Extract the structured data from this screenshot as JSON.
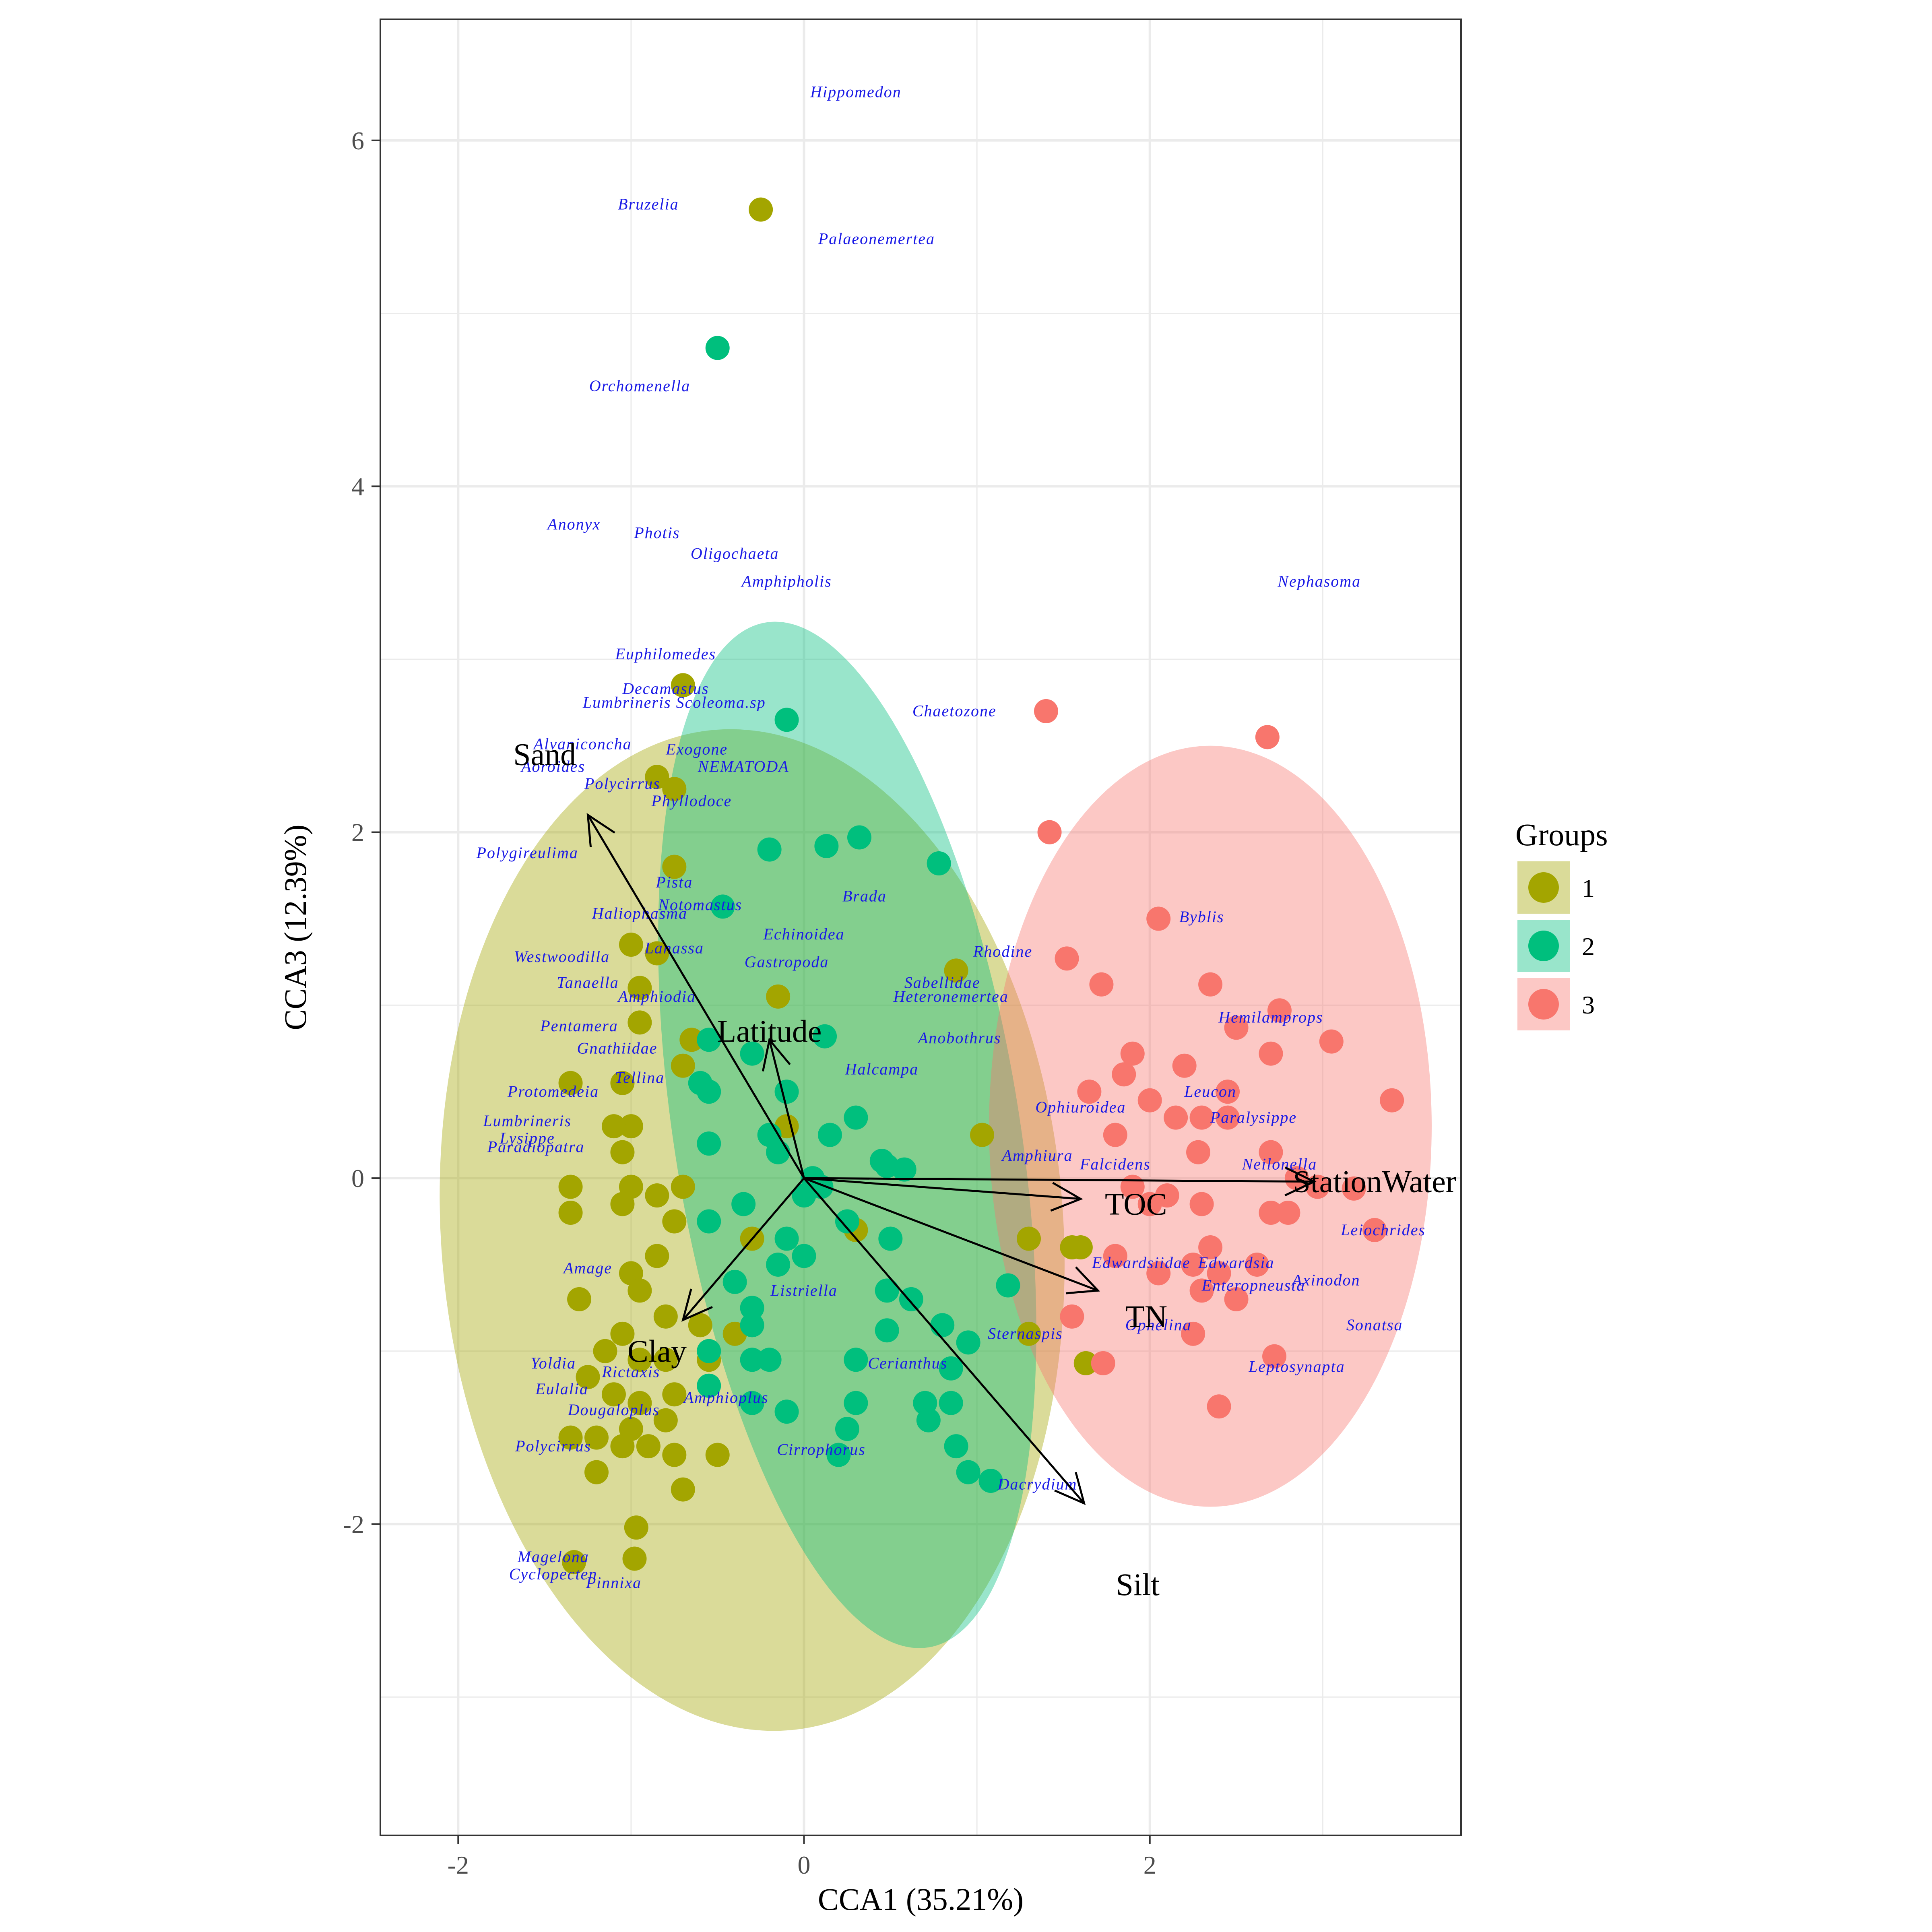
{
  "chart_data": {
    "type": "scatter",
    "xlabel": "CCA1 (35.21%)",
    "ylabel": "CCA3 (12.39%)",
    "xlim": [
      -2.45,
      3.8
    ],
    "ylim": [
      -3.8,
      6.7
    ],
    "x_ticks": [
      -2,
      0,
      2
    ],
    "y_ticks": [
      -2,
      0,
      2,
      4,
      6
    ],
    "grid": true,
    "legend": {
      "title": "Groups",
      "position": "right",
      "entries": [
        {
          "label": "1",
          "color": "#a3a500"
        },
        {
          "label": "2",
          "color": "#00bf7d"
        },
        {
          "label": "3",
          "color": "#f8766d"
        }
      ]
    },
    "ellipses": [
      {
        "group": "1",
        "cx": -0.3,
        "cy": -0.3,
        "rx": 1.8,
        "ry": 2.9,
        "angle": 4
      },
      {
        "group": "2",
        "cx": 0.25,
        "cy": 0.25,
        "rx": 1.0,
        "ry": 3.0,
        "angle": 9
      },
      {
        "group": "3",
        "cx": 2.35,
        "cy": 0.3,
        "rx": 1.28,
        "ry": 2.2,
        "angle": 0
      }
    ],
    "series": [
      {
        "name": "1",
        "color": "#a3a500",
        "points": [
          [
            -0.25,
            5.6
          ],
          [
            -0.7,
            2.85
          ],
          [
            -0.85,
            2.32
          ],
          [
            -0.75,
            2.25
          ],
          [
            -0.75,
            1.8
          ],
          [
            -1.0,
            1.35
          ],
          [
            -0.85,
            1.3
          ],
          [
            -0.95,
            1.1
          ],
          [
            -0.15,
            1.05
          ],
          [
            -0.95,
            0.9
          ],
          [
            -1.35,
            0.55
          ],
          [
            -1.05,
            0.55
          ],
          [
            -0.65,
            0.8
          ],
          [
            -0.7,
            0.65
          ],
          [
            -1.0,
            0.3
          ],
          [
            -1.1,
            0.3
          ],
          [
            -1.05,
            0.15
          ],
          [
            -1.0,
            -0.05
          ],
          [
            -1.05,
            -0.15
          ],
          [
            -1.35,
            -0.05
          ],
          [
            -1.35,
            -0.2
          ],
          [
            -0.85,
            -0.1
          ],
          [
            -0.7,
            -0.05
          ],
          [
            -0.75,
            -0.25
          ],
          [
            -0.85,
            -0.45
          ],
          [
            -1.0,
            -0.55
          ],
          [
            -1.3,
            -0.7
          ],
          [
            -0.95,
            -0.65
          ],
          [
            -0.8,
            -0.8
          ],
          [
            -0.6,
            -0.85
          ],
          [
            -1.05,
            -0.9
          ],
          [
            -1.15,
            -1.0
          ],
          [
            -0.95,
            -1.05
          ],
          [
            -1.25,
            -1.15
          ],
          [
            -0.8,
            -1.05
          ],
          [
            -0.55,
            -1.05
          ],
          [
            -1.1,
            -1.25
          ],
          [
            -0.95,
            -1.3
          ],
          [
            -0.75,
            -1.25
          ],
          [
            -0.8,
            -1.4
          ],
          [
            -1.0,
            -1.45
          ],
          [
            -1.2,
            -1.5
          ],
          [
            -1.35,
            -1.5
          ],
          [
            -1.05,
            -1.55
          ],
          [
            -0.9,
            -1.55
          ],
          [
            -0.75,
            -1.6
          ],
          [
            -0.5,
            -1.6
          ],
          [
            -1.2,
            -1.7
          ],
          [
            -0.7,
            -1.8
          ],
          [
            -0.97,
            -2.02
          ],
          [
            -0.98,
            -2.2
          ],
          [
            -1.33,
            -2.22
          ],
          [
            0.88,
            1.2
          ],
          [
            1.03,
            0.25
          ],
          [
            1.3,
            -0.35
          ],
          [
            1.55,
            -0.4
          ],
          [
            1.6,
            -0.4
          ],
          [
            1.3,
            -0.9
          ],
          [
            1.63,
            -1.07
          ],
          [
            -0.1,
            0.3
          ],
          [
            0.3,
            -0.3
          ],
          [
            -0.3,
            -0.35
          ],
          [
            -0.4,
            -0.9
          ]
        ]
      },
      {
        "name": "2",
        "color": "#00bf7d",
        "points": [
          [
            -0.5,
            4.8
          ],
          [
            -0.1,
            2.65
          ],
          [
            -0.2,
            1.9
          ],
          [
            0.13,
            1.92
          ],
          [
            0.32,
            1.97
          ],
          [
            0.78,
            1.82
          ],
          [
            -0.47,
            1.57
          ],
          [
            -0.55,
            0.8
          ],
          [
            -0.3,
            0.72
          ],
          [
            0.12,
            0.82
          ],
          [
            -0.55,
            0.5
          ],
          [
            -0.1,
            0.5
          ],
          [
            0.3,
            0.35
          ],
          [
            0.15,
            0.25
          ],
          [
            -0.2,
            0.25
          ],
          [
            -0.55,
            0.2
          ],
          [
            0.45,
            0.1
          ],
          [
            0.48,
            0.07
          ],
          [
            0.58,
            0.05
          ],
          [
            0.1,
            -0.05
          ],
          [
            0.0,
            -0.1
          ],
          [
            -0.35,
            -0.15
          ],
          [
            -0.55,
            -0.25
          ],
          [
            0.25,
            -0.25
          ],
          [
            -0.1,
            -0.35
          ],
          [
            0.5,
            -0.35
          ],
          [
            0.0,
            -0.45
          ],
          [
            -0.15,
            -0.5
          ],
          [
            -0.4,
            -0.6
          ],
          [
            0.48,
            -0.65
          ],
          [
            0.62,
            -0.7
          ],
          [
            -0.3,
            -0.75
          ],
          [
            -0.3,
            -0.85
          ],
          [
            0.8,
            -0.85
          ],
          [
            0.48,
            -0.88
          ],
          [
            0.95,
            -0.95
          ],
          [
            -0.55,
            -1.0
          ],
          [
            -0.3,
            -1.05
          ],
          [
            -0.2,
            -1.05
          ],
          [
            0.3,
            -1.05
          ],
          [
            0.85,
            -1.1
          ],
          [
            -0.55,
            -1.2
          ],
          [
            -0.3,
            -1.3
          ],
          [
            0.3,
            -1.3
          ],
          [
            0.7,
            -1.3
          ],
          [
            0.85,
            -1.3
          ],
          [
            -0.1,
            -1.35
          ],
          [
            0.25,
            -1.45
          ],
          [
            0.72,
            -1.4
          ],
          [
            0.88,
            -1.55
          ],
          [
            0.2,
            -1.6
          ],
          [
            0.95,
            -1.7
          ],
          [
            1.08,
            -1.75
          ],
          [
            1.18,
            -0.62
          ],
          [
            -0.6,
            0.55
          ],
          [
            0.05,
            0.0
          ],
          [
            -0.15,
            0.15
          ]
        ]
      },
      {
        "name": "3",
        "color": "#f8766d",
        "points": [
          [
            1.4,
            2.7
          ],
          [
            2.68,
            2.55
          ],
          [
            1.42,
            2.0
          ],
          [
            2.05,
            1.5
          ],
          [
            1.52,
            1.27
          ],
          [
            1.72,
            1.12
          ],
          [
            2.35,
            1.12
          ],
          [
            2.5,
            0.87
          ],
          [
            2.75,
            0.97
          ],
          [
            3.05,
            0.79
          ],
          [
            2.7,
            0.72
          ],
          [
            1.9,
            0.72
          ],
          [
            1.85,
            0.6
          ],
          [
            2.2,
            0.65
          ],
          [
            1.65,
            0.5
          ],
          [
            2.0,
            0.45
          ],
          [
            2.45,
            0.5
          ],
          [
            3.4,
            0.45
          ],
          [
            2.3,
            0.35
          ],
          [
            2.45,
            0.35
          ],
          [
            2.15,
            0.35
          ],
          [
            1.8,
            0.25
          ],
          [
            2.28,
            0.15
          ],
          [
            2.7,
            0.15
          ],
          [
            2.85,
            0.0
          ],
          [
            2.97,
            -0.05
          ],
          [
            3.18,
            -0.06
          ],
          [
            1.9,
            -0.05
          ],
          [
            2.1,
            -0.1
          ],
          [
            2.0,
            -0.15
          ],
          [
            2.3,
            -0.15
          ],
          [
            2.7,
            -0.2
          ],
          [
            2.8,
            -0.2
          ],
          [
            3.3,
            -0.3
          ],
          [
            2.35,
            -0.4
          ],
          [
            2.25,
            -0.5
          ],
          [
            2.62,
            -0.5
          ],
          [
            2.4,
            -0.55
          ],
          [
            1.8,
            -0.45
          ],
          [
            2.05,
            -0.55
          ],
          [
            2.3,
            -0.65
          ],
          [
            2.5,
            -0.7
          ],
          [
            1.55,
            -0.8
          ],
          [
            2.25,
            -0.9
          ],
          [
            2.72,
            -1.03
          ],
          [
            1.73,
            -1.07
          ],
          [
            2.4,
            -1.32
          ]
        ]
      }
    ],
    "species": [
      {
        "name": "Hippomedon",
        "x": 0.3,
        "y": 6.25
      },
      {
        "name": "Bruzelia",
        "x": -0.9,
        "y": 5.6
      },
      {
        "name": "Palaeonemertea",
        "x": 0.42,
        "y": 5.4
      },
      {
        "name": "Orchomenella",
        "x": -0.95,
        "y": 4.55
      },
      {
        "name": "Anonyx",
        "x": -1.33,
        "y": 3.75
      },
      {
        "name": "Photis",
        "x": -0.85,
        "y": 3.7
      },
      {
        "name": "Oligochaeta",
        "x": -0.4,
        "y": 3.58
      },
      {
        "name": "Amphipholis",
        "x": -0.1,
        "y": 3.42
      },
      {
        "name": "Nephasoma",
        "x": 2.98,
        "y": 3.42
      },
      {
        "name": "Euphilomedes",
        "x": -0.8,
        "y": 3.0
      },
      {
        "name": "Decamastus",
        "x": -0.8,
        "y": 2.8
      },
      {
        "name": "Lumbrineris Scoleoma.sp",
        "x": -0.75,
        "y": 2.72
      },
      {
        "name": "Chaetozone",
        "x": 0.87,
        "y": 2.67
      },
      {
        "name": "Alvaniconcha",
        "x": -1.28,
        "y": 2.48
      },
      {
        "name": "Exogone",
        "x": -0.62,
        "y": 2.45
      },
      {
        "name": "Aoroides",
        "x": -1.45,
        "y": 2.35
      },
      {
        "name": "Polycirrus",
        "x": -1.05,
        "y": 2.25
      },
      {
        "name": "NEMATODA",
        "x": -0.35,
        "y": 2.35
      },
      {
        "name": "Phyllodoce",
        "x": -0.65,
        "y": 2.15
      },
      {
        "name": "Polygireulima",
        "x": -1.6,
        "y": 1.85
      },
      {
        "name": "Pista",
        "x": -0.75,
        "y": 1.68
      },
      {
        "name": "Brada",
        "x": 0.35,
        "y": 1.6
      },
      {
        "name": "Notomastus",
        "x": -0.6,
        "y": 1.55
      },
      {
        "name": "Haliophasma",
        "x": -0.95,
        "y": 1.5
      },
      {
        "name": "Echinoidea",
        "x": 0.0,
        "y": 1.38
      },
      {
        "name": "Lanassa",
        "x": -0.75,
        "y": 1.3
      },
      {
        "name": "Byblis",
        "x": 2.3,
        "y": 1.48
      },
      {
        "name": "Rhodine",
        "x": 1.15,
        "y": 1.28
      },
      {
        "name": "Westwoodilla",
        "x": -1.4,
        "y": 1.25
      },
      {
        "name": "Gastropoda",
        "x": -0.1,
        "y": 1.22
      },
      {
        "name": "Tanaella",
        "x": -1.25,
        "y": 1.1
      },
      {
        "name": "Sabellidae",
        "x": 0.8,
        "y": 1.1
      },
      {
        "name": "Amphiodia",
        "x": -0.85,
        "y": 1.02
      },
      {
        "name": "Heteronemertea",
        "x": 0.85,
        "y": 1.02
      },
      {
        "name": "Pentamera",
        "x": -1.3,
        "y": 0.85
      },
      {
        "name": "Hemilamprops",
        "x": 2.7,
        "y": 0.9
      },
      {
        "name": "Gnathiidae",
        "x": -1.08,
        "y": 0.72
      },
      {
        "name": "Anobothrus",
        "x": 0.9,
        "y": 0.78
      },
      {
        "name": "Tellina",
        "x": -0.95,
        "y": 0.55
      },
      {
        "name": "Halcampa",
        "x": 0.45,
        "y": 0.6
      },
      {
        "name": "Protomedeia",
        "x": -1.45,
        "y": 0.47
      },
      {
        "name": "Leucon",
        "x": 2.35,
        "y": 0.47
      },
      {
        "name": "Ophiuroidea",
        "x": 1.6,
        "y": 0.38
      },
      {
        "name": "Lumbrineris",
        "x": -1.6,
        "y": 0.3
      },
      {
        "name": "Paralysippe",
        "x": 2.6,
        "y": 0.32
      },
      {
        "name": "Lysippe",
        "x": -1.6,
        "y": 0.2
      },
      {
        "name": "Paradiopatra",
        "x": -1.55,
        "y": 0.15
      },
      {
        "name": "Amphiura",
        "x": 1.35,
        "y": 0.1
      },
      {
        "name": "Falcidens",
        "x": 1.8,
        "y": 0.05
      },
      {
        "name": "Neilonella",
        "x": 2.75,
        "y": 0.05
      },
      {
        "name": "Leiochrides",
        "x": 3.35,
        "y": -0.33
      },
      {
        "name": "Edwardsiidae",
        "x": 1.95,
        "y": -0.52
      },
      {
        "name": "Edwardsia",
        "x": 2.5,
        "y": -0.52
      },
      {
        "name": "Axinodon",
        "x": 3.02,
        "y": -0.62
      },
      {
        "name": "Enteropneusta",
        "x": 2.6,
        "y": -0.65
      },
      {
        "name": "Ophelina",
        "x": 2.05,
        "y": -0.88
      },
      {
        "name": "Sonatsa",
        "x": 3.3,
        "y": -0.88
      },
      {
        "name": "Leptosynapta",
        "x": 2.85,
        "y": -1.12
      },
      {
        "name": "Sternaspis",
        "x": 1.28,
        "y": -0.93
      },
      {
        "name": "Listriella",
        "x": 0.0,
        "y": -0.68
      },
      {
        "name": "Cerianthus",
        "x": 0.6,
        "y": -1.1
      },
      {
        "name": "Amphioplus",
        "x": -0.45,
        "y": -1.3
      },
      {
        "name": "Dougaloplus",
        "x": -1.1,
        "y": -1.37
      },
      {
        "name": "Cirrophorus",
        "x": 0.1,
        "y": -1.6
      },
      {
        "name": "Polycirrus",
        "x": -1.45,
        "y": -1.58
      },
      {
        "name": "Dacrydium",
        "x": 1.35,
        "y": -1.8
      },
      {
        "name": "Magelona",
        "x": -1.45,
        "y": -2.22
      },
      {
        "name": "Cyclopecten",
        "x": -1.45,
        "y": -2.32
      },
      {
        "name": "Pinnixa",
        "x": -1.1,
        "y": -2.37
      },
      {
        "name": "Eulalia",
        "x": -1.4,
        "y": -1.25
      },
      {
        "name": "Yoldia",
        "x": -1.45,
        "y": -1.1
      },
      {
        "name": "Amage",
        "x": -1.25,
        "y": -0.55
      },
      {
        "name": "Rictaxis",
        "x": -1.0,
        "y": -1.15
      }
    ],
    "env_vectors": [
      {
        "name": "Sand",
        "x": -1.25,
        "y": 2.1,
        "lx": -1.5,
        "ly": 2.45
      },
      {
        "name": "Latitude",
        "x": -0.2,
        "y": 0.8,
        "lx": -0.2,
        "ly": 0.85
      },
      {
        "name": "StationWater",
        "x": 2.95,
        "y": -0.02,
        "lx": 3.3,
        "ly": -0.02
      },
      {
        "name": "TOC",
        "x": 1.6,
        "y": -0.12,
        "lx": 1.92,
        "ly": -0.15
      },
      {
        "name": "TN",
        "x": 1.7,
        "y": -0.65,
        "lx": 1.98,
        "ly": -0.8
      },
      {
        "name": "Silt",
        "x": 1.62,
        "y": -1.88,
        "lx": 1.93,
        "ly": -2.35
      },
      {
        "name": "Clay",
        "x": -0.7,
        "y": -0.82,
        "lx": -0.85,
        "ly": -1.0
      }
    ]
  }
}
